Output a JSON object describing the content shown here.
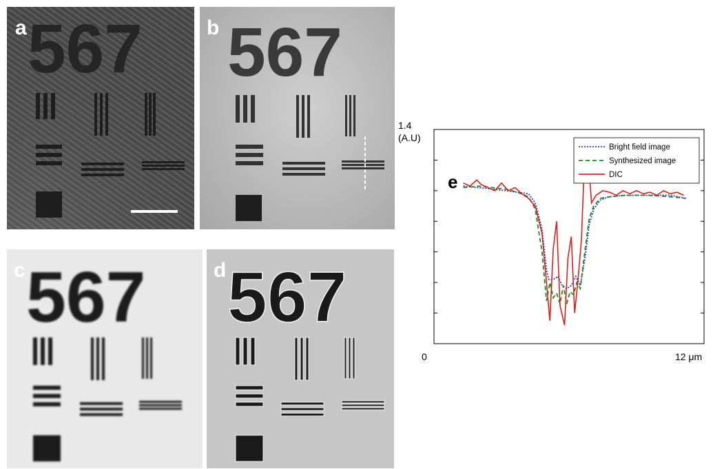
{
  "panels": {
    "a": {
      "label": "a",
      "digits": "567"
    },
    "b": {
      "label": "b",
      "digits": "567"
    },
    "c": {
      "label": "c",
      "digits": "567"
    },
    "d": {
      "label": "d",
      "digits": "567"
    }
  },
  "chart_data": {
    "type": "line",
    "panel_label": "e",
    "ylabel_top": "1.4",
    "ylabel_unit": "(A.U)",
    "x_min_label": "0",
    "x_max_label": "12 μm",
    "xlim": [
      0,
      12
    ],
    "ylim": [
      0,
      1.4
    ],
    "series": [
      {
        "name": "Bright field image",
        "color": "#2233dd",
        "dash": "2,2",
        "x": [
          1.3,
          2.0,
          2.6,
          3.2,
          3.7,
          4.2,
          4.5,
          4.8,
          5.0,
          5.1,
          5.3,
          5.5,
          5.7,
          5.9,
          6.1,
          6.3,
          6.5,
          6.7,
          6.9,
          7.1,
          7.4,
          7.8,
          8.5,
          9.5,
          10.5,
          11.2
        ],
        "y": [
          1.03,
          1.02,
          1.01,
          1.0,
          0.99,
          0.98,
          0.92,
          0.75,
          0.48,
          0.42,
          0.42,
          0.44,
          0.38,
          0.36,
          0.38,
          0.44,
          0.38,
          0.55,
          0.78,
          0.88,
          0.94,
          0.96,
          0.97,
          0.97,
          0.97,
          0.95
        ]
      },
      {
        "name": "Synthesized image",
        "color": "#1a8a1a",
        "dash": "6,4",
        "x": [
          1.3,
          2.0,
          2.6,
          3.2,
          3.7,
          4.2,
          4.5,
          4.8,
          5.0,
          5.15,
          5.3,
          5.45,
          5.6,
          5.75,
          5.9,
          6.05,
          6.2,
          6.35,
          6.5,
          6.7,
          6.9,
          7.1,
          7.4,
          7.8,
          8.5,
          9.5,
          10.5,
          11.2
        ],
        "y": [
          1.02,
          1.03,
          1.02,
          1.01,
          0.99,
          0.96,
          0.88,
          0.6,
          0.28,
          0.4,
          0.3,
          0.33,
          0.26,
          0.38,
          0.26,
          0.34,
          0.32,
          0.4,
          0.36,
          0.6,
          0.82,
          0.9,
          0.95,
          0.96,
          0.97,
          0.97,
          0.96,
          0.95
        ]
      },
      {
        "name": "DIC",
        "color": "#e21b1b",
        "dash": "",
        "x": [
          1.3,
          1.6,
          1.9,
          2.1,
          2.4,
          2.7,
          3.0,
          3.3,
          3.6,
          3.9,
          4.2,
          4.5,
          4.8,
          5.0,
          5.15,
          5.3,
          5.45,
          5.6,
          5.8,
          5.95,
          6.1,
          6.25,
          6.4,
          6.55,
          6.7,
          6.85,
          7.0,
          7.2,
          7.5,
          7.8,
          8.1,
          8.4,
          8.7,
          9.0,
          9.3,
          9.6,
          9.9,
          10.2,
          10.5,
          10.8,
          11.1
        ],
        "y": [
          1.05,
          1.03,
          1.07,
          1.04,
          1.02,
          1.0,
          1.05,
          1.0,
          1.02,
          0.98,
          0.95,
          0.9,
          0.72,
          0.4,
          0.15,
          0.62,
          0.8,
          0.25,
          0.12,
          0.56,
          0.7,
          0.2,
          0.42,
          0.68,
          1.25,
          1.22,
          0.92,
          0.97,
          1.0,
          0.99,
          0.97,
          1.0,
          0.98,
          1.0,
          0.98,
          0.99,
          0.97,
          1.0,
          0.98,
          0.99,
          0.97
        ]
      }
    ]
  }
}
